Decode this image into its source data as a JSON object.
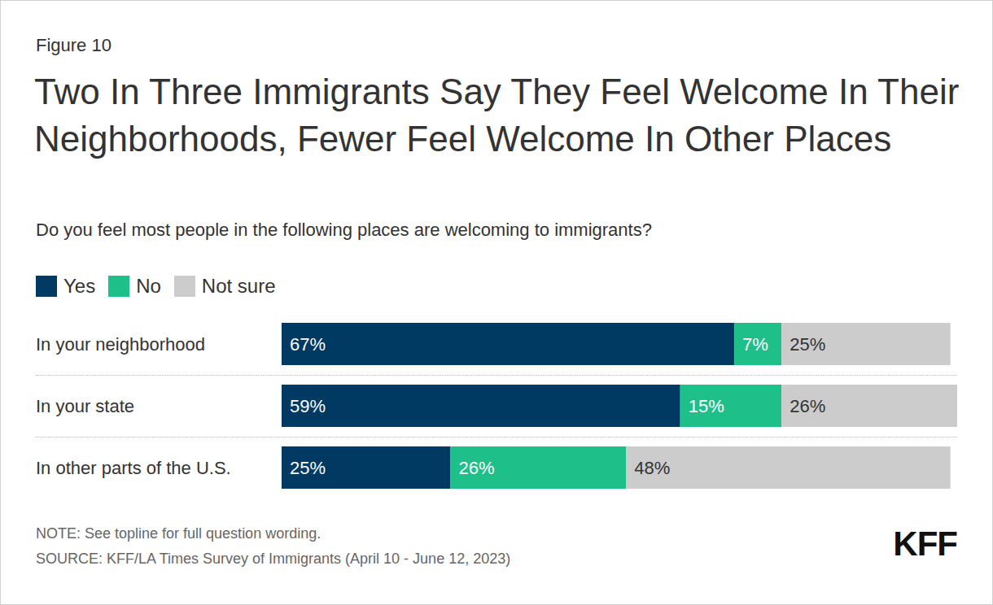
{
  "chart_data": {
    "type": "bar",
    "orientation": "horizontal",
    "stacked": true,
    "data_labels": true,
    "tick_labels": false,
    "legend": "top-left",
    "figure_label": "Figure 10",
    "title": "Two In Three Immigrants Say They Feel Welcome In Their Neighborhoods, Fewer Feel Welcome In Other Places",
    "subtitle": "Do you feel most people in the following places are welcoming to immigrants?",
    "categories": [
      "In your neighborhood",
      "In your state",
      "In other parts of the U.S."
    ],
    "series": [
      {
        "name": "Yes",
        "color": "#003a63",
        "values": [
          67,
          59,
          25
        ],
        "value_labels": [
          "67%",
          "59%",
          "25%"
        ]
      },
      {
        "name": "No",
        "color": "#1fbf8a",
        "values": [
          7,
          15,
          26
        ],
        "value_labels": [
          "7%",
          "15%",
          "26%"
        ]
      },
      {
        "name": "Not sure",
        "color": "#cccccc",
        "values": [
          25,
          26,
          48
        ],
        "value_labels": [
          "25%",
          "26%",
          "48%"
        ]
      }
    ],
    "xlim": [
      0,
      100
    ],
    "xticks": [
      0,
      100
    ],
    "note": "NOTE: See topline for full question wording.",
    "source": "SOURCE: KFF/LA Times Survey of Immigrants (April 10 - June 12, 2023)",
    "logo": "KFF"
  }
}
